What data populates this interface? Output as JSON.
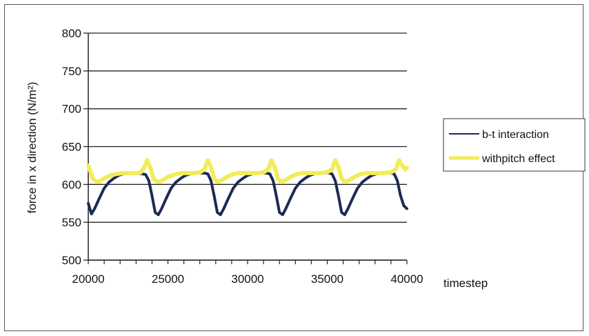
{
  "chart_data": {
    "type": "line",
    "title": "",
    "xlabel": "timestep",
    "ylabel": "force in x direction (N/m²)",
    "xlim": [
      20000,
      40000
    ],
    "ylim": [
      500,
      800
    ],
    "xticks": [
      20000,
      25000,
      30000,
      35000,
      40000
    ],
    "yticks": [
      500,
      550,
      600,
      650,
      700,
      750,
      800
    ],
    "grid": "horizontal",
    "legend_position": "right",
    "series": [
      {
        "name": "b-t interaction",
        "color": "#1c2a55",
        "x": [
          20000,
          20200,
          20400,
          20700,
          21000,
          21300,
          21600,
          21900,
          22200,
          22500,
          22800,
          23100,
          23400,
          23600,
          23800,
          24000,
          24200,
          24400,
          24600,
          24900,
          25200,
          25500,
          25800,
          26100,
          26400,
          26700,
          27000,
          27300,
          27500,
          27700,
          27900,
          28100,
          28300,
          28500,
          28800,
          29100,
          29400,
          29700,
          30000,
          30300,
          30600,
          30900,
          31200,
          31400,
          31600,
          31800,
          32000,
          32200,
          32400,
          32700,
          33000,
          33300,
          33600,
          33900,
          34200,
          34500,
          34800,
          35100,
          35300,
          35500,
          35700,
          35900,
          36100,
          36300,
          36600,
          36900,
          37200,
          37500,
          37800,
          38100,
          38400,
          38700,
          39000,
          39200,
          39400,
          39600,
          39800,
          40000
        ],
        "y": [
          575,
          561,
          568,
          582,
          595,
          603,
          608,
          612,
          614,
          615,
          615,
          615,
          614,
          613,
          605,
          585,
          563,
          560,
          568,
          582,
          595,
          603,
          608,
          612,
          614,
          615,
          615,
          615,
          614,
          605,
          585,
          563,
          560,
          568,
          582,
          595,
          603,
          608,
          612,
          614,
          615,
          615,
          615,
          614,
          605,
          585,
          563,
          560,
          568,
          582,
          595,
          603,
          608,
          612,
          614,
          615,
          615,
          615,
          614,
          605,
          585,
          563,
          560,
          568,
          582,
          595,
          603,
          608,
          612,
          614,
          615,
          615,
          615,
          614,
          605,
          585,
          572,
          568
        ]
      },
      {
        "name": "withpitch effect",
        "color": "#f2ec5a",
        "x": [
          20000,
          20300,
          20600,
          21000,
          21400,
          21800,
          22200,
          22600,
          23000,
          23300,
          23500,
          23700,
          23900,
          24100,
          24400,
          24700,
          25000,
          25400,
          25800,
          26200,
          26600,
          27000,
          27300,
          27500,
          27700,
          27900,
          28100,
          28400,
          28700,
          29000,
          29400,
          29800,
          30200,
          30600,
          31000,
          31300,
          31500,
          31700,
          31900,
          32100,
          32400,
          32700,
          33000,
          33400,
          33800,
          34200,
          34600,
          35000,
          35300,
          35500,
          35700,
          35900,
          36100,
          36400,
          36700,
          37000,
          37400,
          37800,
          38200,
          38600,
          39000,
          39300,
          39500,
          39700,
          39900,
          40000
        ],
        "y": [
          625,
          607,
          603,
          608,
          612,
          614,
          615,
          615,
          615,
          616,
          622,
          632,
          622,
          607,
          603,
          606,
          610,
          613,
          615,
          615,
          615,
          616,
          620,
          632,
          623,
          608,
          603,
          606,
          610,
          613,
          615,
          615,
          615,
          615,
          616,
          620,
          632,
          623,
          608,
          603,
          606,
          610,
          613,
          615,
          615,
          615,
          615,
          616,
          620,
          632,
          623,
          608,
          603,
          606,
          610,
          613,
          615,
          615,
          615,
          615,
          616,
          620,
          632,
          625,
          620,
          622
        ]
      }
    ]
  }
}
